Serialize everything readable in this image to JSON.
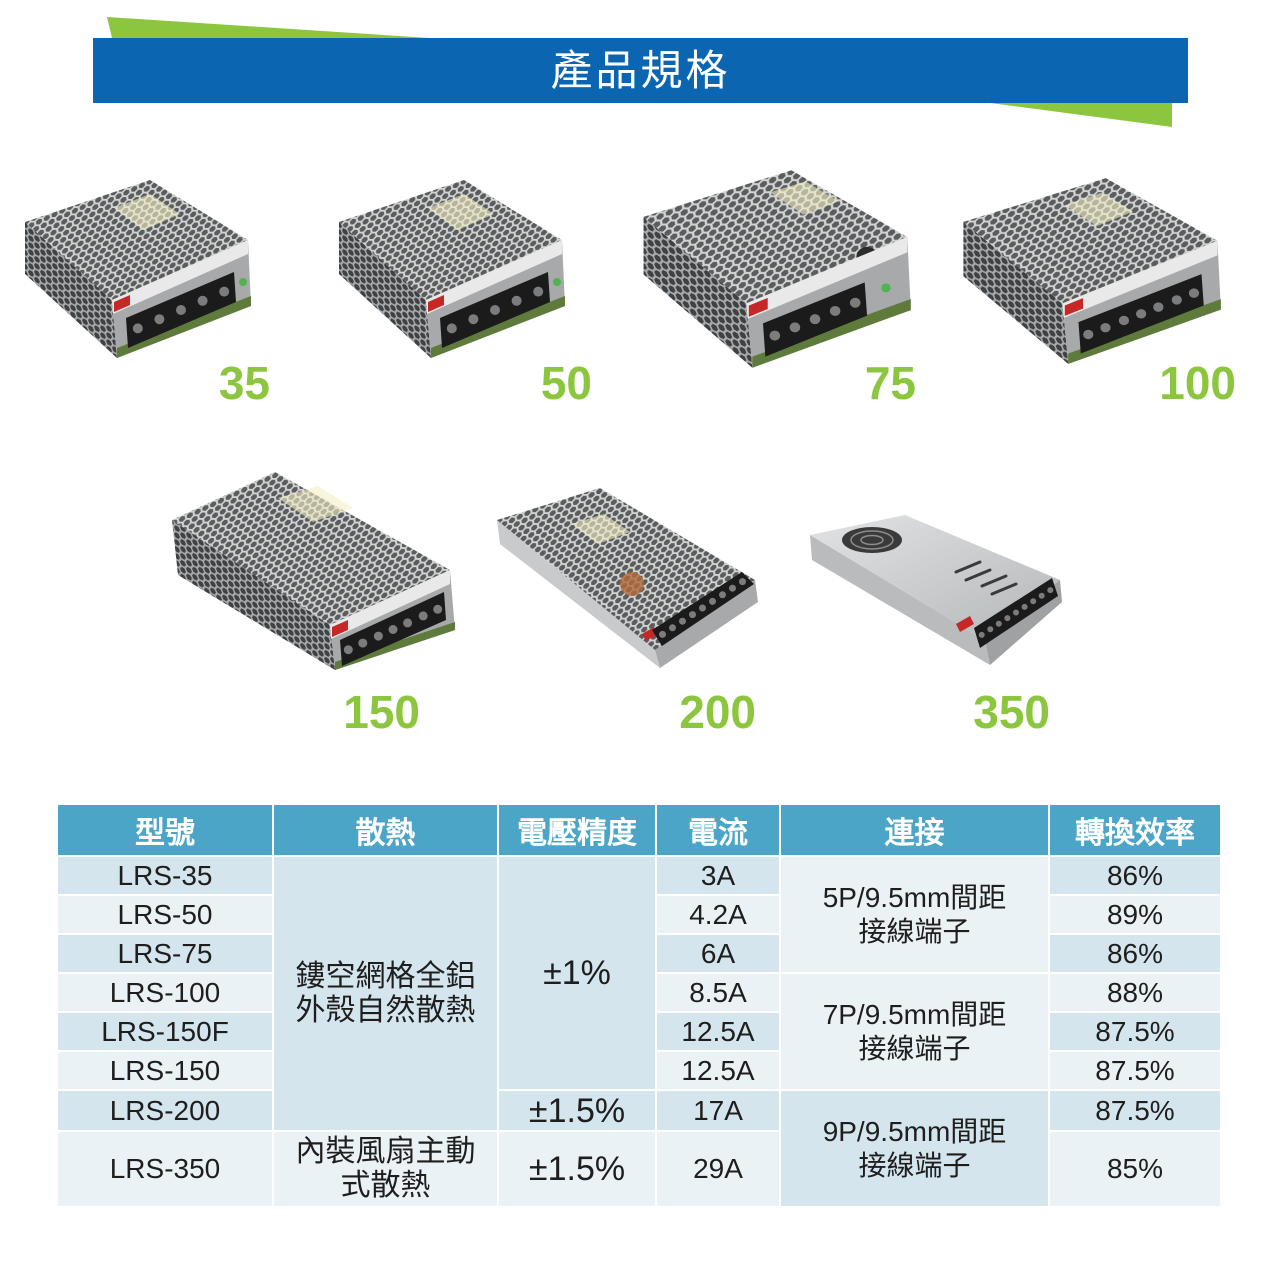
{
  "header": {
    "title": "產品規格"
  },
  "products": [
    {
      "label": "35"
    },
    {
      "label": "50"
    },
    {
      "label": "75"
    },
    {
      "label": "100"
    },
    {
      "label": "150"
    },
    {
      "label": "200"
    },
    {
      "label": "350"
    }
  ],
  "table": {
    "headers": {
      "model": "型號",
      "cooling": "散熱",
      "accuracy": "電壓精度",
      "current": "電流",
      "connection": "連接",
      "efficiency": "轉換效率"
    },
    "rows": [
      {
        "model": "LRS-35",
        "current": "3A",
        "efficiency": "86%"
      },
      {
        "model": "LRS-50",
        "current": "4.2A",
        "efficiency": "89%"
      },
      {
        "model": "LRS-75",
        "current": "6A",
        "efficiency": "86%"
      },
      {
        "model": "LRS-100",
        "current": "8.5A",
        "efficiency": "88%"
      },
      {
        "model": "LRS-150F",
        "current": "12.5A",
        "efficiency": "87.5%"
      },
      {
        "model": "LRS-150",
        "current": "12.5A",
        "efficiency": "87.5%"
      },
      {
        "model": "LRS-200",
        "current": "17A",
        "efficiency": "87.5%"
      },
      {
        "model": "LRS-350",
        "current": "29A",
        "efficiency": "85%"
      }
    ],
    "cooling": [
      {
        "lines": [
          "鏤空網格全鋁",
          "外殼自然散熱"
        ]
      },
      {
        "lines": [
          "內裝風扇主動",
          "式散熱"
        ]
      }
    ],
    "accuracy": [
      "±1%",
      "±1.5%",
      "±1.5%"
    ],
    "connection": [
      {
        "lines": [
          "5P/9.5mm間距",
          "接線端子"
        ]
      },
      {
        "lines": [
          "7P/9.5mm間距",
          "接線端子"
        ]
      },
      {
        "lines": [
          "9P/9.5mm間距",
          "接線端子"
        ]
      }
    ]
  },
  "colors": {
    "banner_blue": "#0b65b1",
    "accent_green": "#8cc63f",
    "table_header": "#4aa5c6",
    "row_dark": "#d5e5ed",
    "row_light": "#eaf2f6",
    "text": "#1e1e1e"
  }
}
